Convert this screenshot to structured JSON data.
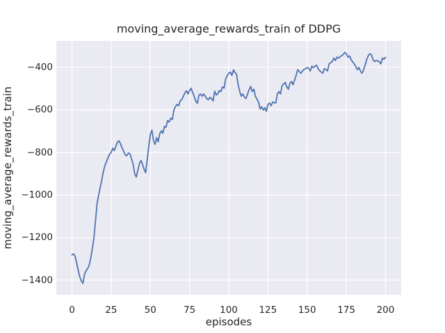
{
  "chart_data": {
    "type": "line",
    "title": "moving_average_rewards_train of DDPG",
    "xlabel": "episodes",
    "ylabel": "moving_average_rewards_train",
    "legend": null,
    "grid": true,
    "x_start": 0,
    "x_step": 1,
    "xlim": [
      -10,
      210
    ],
    "ylim": [
      -1469,
      -276
    ],
    "xticks": [
      0,
      25,
      50,
      75,
      100,
      125,
      150,
      175,
      200
    ],
    "yticks": [
      -1400,
      -1200,
      -1000,
      -800,
      -600,
      -400
    ],
    "xtick_labels": [
      "0",
      "25",
      "50",
      "75",
      "100",
      "125",
      "150",
      "175",
      "200"
    ],
    "ytick_labels": [
      "−1400",
      "−1200",
      "−1000",
      "−800",
      "−600",
      "−400"
    ],
    "series": [
      {
        "name": "moving_average_rewards_train",
        "values": [
          -1282,
          -1276,
          -1288,
          -1320,
          -1355,
          -1385,
          -1405,
          -1415,
          -1372,
          -1356,
          -1345,
          -1330,
          -1295,
          -1250,
          -1202,
          -1120,
          -1040,
          -1000,
          -965,
          -930,
          -890,
          -862,
          -843,
          -825,
          -808,
          -800,
          -780,
          -791,
          -770,
          -752,
          -745,
          -760,
          -780,
          -795,
          -812,
          -815,
          -802,
          -807,
          -830,
          -855,
          -900,
          -915,
          -885,
          -852,
          -838,
          -856,
          -880,
          -895,
          -830,
          -770,
          -715,
          -695,
          -745,
          -762,
          -730,
          -750,
          -712,
          -698,
          -710,
          -677,
          -682,
          -650,
          -657,
          -639,
          -645,
          -600,
          -585,
          -574,
          -580,
          -558,
          -552,
          -537,
          -520,
          -510,
          -525,
          -509,
          -498,
          -519,
          -536,
          -560,
          -569,
          -531,
          -525,
          -536,
          -525,
          -535,
          -547,
          -552,
          -541,
          -547,
          -558,
          -512,
          -530,
          -525,
          -509,
          -514,
          -492,
          -498,
          -455,
          -440,
          -428,
          -422,
          -438,
          -412,
          -425,
          -433,
          -482,
          -514,
          -536,
          -525,
          -540,
          -547,
          -525,
          -505,
          -490,
          -514,
          -503,
          -536,
          -550,
          -563,
          -596,
          -585,
          -601,
          -590,
          -607,
          -574,
          -568,
          -580,
          -563,
          -566,
          -568,
          -525,
          -514,
          -525,
          -487,
          -478,
          -471,
          -492,
          -503,
          -476,
          -466,
          -482,
          -460,
          -438,
          -411,
          -420,
          -428,
          -417,
          -410,
          -406,
          -401,
          -405,
          -417,
          -395,
          -401,
          -395,
          -390,
          -406,
          -417,
          -422,
          -428,
          -406,
          -410,
          -417,
          -384,
          -378,
          -373,
          -357,
          -368,
          -352,
          -357,
          -350,
          -346,
          -340,
          -330,
          -336,
          -352,
          -346,
          -363,
          -374,
          -384,
          -395,
          -411,
          -401,
          -417,
          -428,
          -412,
          -390,
          -363,
          -345,
          -336,
          -341,
          -363,
          -373,
          -368,
          -370,
          -373,
          -384,
          -357,
          -362,
          -353
        ]
      }
    ],
    "colors": {
      "line": "#4c72b0",
      "axes_background": "#eaeaf2",
      "grid": "#ffffff",
      "figure_background": "#ffffff",
      "text": "#262626"
    }
  }
}
